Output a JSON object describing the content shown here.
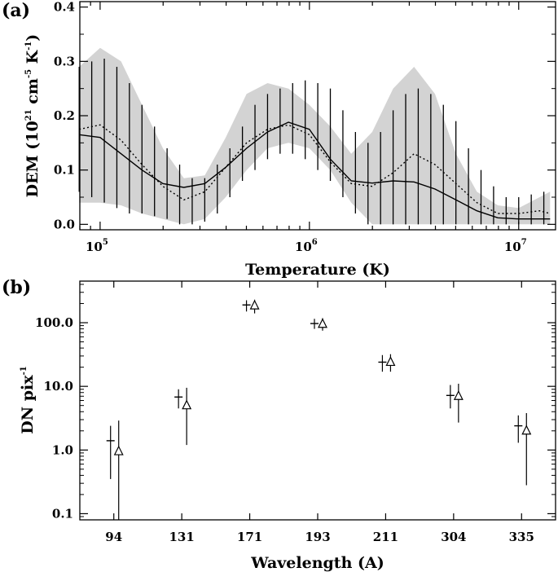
{
  "chart_data": [
    {
      "panel": "(a)",
      "type": "line",
      "xlabel": "Temperature (K)",
      "ylabel_main": "DEM (10",
      "ylabel_sup1": "21",
      "ylabel_mid": " cm",
      "ylabel_sup2": "-5",
      "ylabel_mid2": " K",
      "ylabel_sup3": "-1",
      "ylabel_end": ")",
      "xscale": "log",
      "xlim": [
        80000,
        15000000
      ],
      "ylim": [
        -0.01,
        0.41
      ],
      "xticks_major": [
        100000,
        1000000,
        10000000
      ],
      "xtick_base": "10",
      "xtick_exps": [
        "5",
        "6",
        "7"
      ],
      "yticks": [
        0.0,
        0.1,
        0.2,
        0.3,
        0.4
      ],
      "ytick_labels": [
        "0.0",
        "0.1",
        "0.2",
        "0.3",
        "0.4"
      ],
      "band_color": "#d3d3d3",
      "logT": [
        4.9,
        5.0,
        5.1,
        5.2,
        5.3,
        5.4,
        5.5,
        5.6,
        5.7,
        5.8,
        5.9,
        6.0,
        6.1,
        6.2,
        6.3,
        6.4,
        6.5,
        6.6,
        6.7,
        6.8,
        6.9,
        7.0,
        7.1,
        7.15
      ],
      "band_upper": [
        0.29,
        0.325,
        0.3,
        0.22,
        0.14,
        0.085,
        0.09,
        0.16,
        0.24,
        0.26,
        0.25,
        0.22,
        0.18,
        0.13,
        0.17,
        0.25,
        0.29,
        0.24,
        0.13,
        0.06,
        0.035,
        0.03,
        0.05,
        0.06
      ],
      "band_lower": [
        0.04,
        0.04,
        0.035,
        0.02,
        0.01,
        0.0,
        0.01,
        0.05,
        0.1,
        0.14,
        0.15,
        0.14,
        0.1,
        0.04,
        0.0,
        0.0,
        0.0,
        0.0,
        0.0,
        0.0,
        0.0,
        0.0,
        0.0,
        0.0
      ],
      "series": [
        {
          "style": "solid",
          "y": [
            0.165,
            0.16,
            0.13,
            0.1,
            0.075,
            0.068,
            0.075,
            0.105,
            0.14,
            0.17,
            0.188,
            0.175,
            0.12,
            0.08,
            0.076,
            0.08,
            0.078,
            0.065,
            0.045,
            0.025,
            0.012,
            0.01,
            0.01,
            0.01
          ]
        },
        {
          "style": "dotted",
          "y": [
            0.175,
            0.183,
            0.155,
            0.11,
            0.07,
            0.045,
            0.06,
            0.105,
            0.15,
            0.175,
            0.183,
            0.165,
            0.115,
            0.075,
            0.07,
            0.095,
            0.13,
            0.11,
            0.075,
            0.04,
            0.02,
            0.02,
            0.025,
            0.02
          ]
        }
      ],
      "errorbars": {
        "logT": [
          4.9,
          4.96,
          5.02,
          5.08,
          5.14,
          5.2,
          5.26,
          5.32,
          5.38,
          5.44,
          5.5,
          5.56,
          5.62,
          5.68,
          5.74,
          5.8,
          5.86,
          5.92,
          5.98,
          6.04,
          6.1,
          6.16,
          6.22,
          6.28,
          6.34,
          6.4,
          6.46,
          6.52,
          6.58,
          6.64,
          6.7,
          6.76,
          6.82,
          6.88,
          6.94,
          7.0,
          7.06,
          7.12
        ],
        "upper": [
          0.29,
          0.3,
          0.305,
          0.29,
          0.26,
          0.22,
          0.18,
          0.14,
          0.11,
          0.085,
          0.085,
          0.11,
          0.14,
          0.18,
          0.22,
          0.24,
          0.25,
          0.26,
          0.265,
          0.26,
          0.25,
          0.21,
          0.17,
          0.15,
          0.17,
          0.21,
          0.24,
          0.25,
          0.24,
          0.22,
          0.19,
          0.14,
          0.1,
          0.07,
          0.05,
          0.05,
          0.055,
          0.06
        ],
        "lower": [
          0.06,
          0.05,
          0.04,
          0.03,
          0.02,
          0.02,
          0.015,
          0.01,
          0.0,
          0.0,
          0.005,
          0.02,
          0.05,
          0.08,
          0.1,
          0.12,
          0.13,
          0.13,
          0.12,
          0.1,
          0.08,
          0.05,
          0.02,
          0.0,
          0.0,
          0.0,
          0.0,
          0.0,
          0.0,
          0.0,
          0.0,
          0.0,
          0.0,
          0.0,
          0.0,
          0.0,
          0.0,
          0.0
        ]
      }
    },
    {
      "panel": "(b)",
      "type": "scatter",
      "xlabel": "Wavelength (A)",
      "ylabel_main": "DN pix",
      "ylabel_sup": "-1",
      "yscale": "log",
      "ylim": [
        0.08,
        450
      ],
      "yticks": [
        0.1,
        1.0,
        10.0,
        100.0
      ],
      "ytick_labels": [
        "0.1",
        "1.0",
        "10.0",
        "100.0"
      ],
      "categories": [
        "94",
        "131",
        "171",
        "193",
        "211",
        "304",
        "335"
      ],
      "observed": {
        "marker": "plus",
        "values": [
          1.4,
          6.8,
          190,
          97,
          24,
          7.2,
          2.4
        ],
        "err_low": [
          0.35,
          4.5,
          150,
          80,
          17,
          4.5,
          1.3
        ],
        "err_high": [
          2.4,
          9.0,
          225,
          115,
          31,
          10.5,
          3.5
        ]
      },
      "model": {
        "marker": "triangle",
        "values": [
          0.95,
          5.0,
          185,
          95,
          24,
          7.0,
          2.0
        ],
        "err_low": [
          0.08,
          1.2,
          140,
          75,
          17,
          2.7,
          0.28
        ],
        "err_high": [
          2.9,
          9.5,
          230,
          118,
          32,
          11.0,
          3.8
        ]
      }
    }
  ]
}
